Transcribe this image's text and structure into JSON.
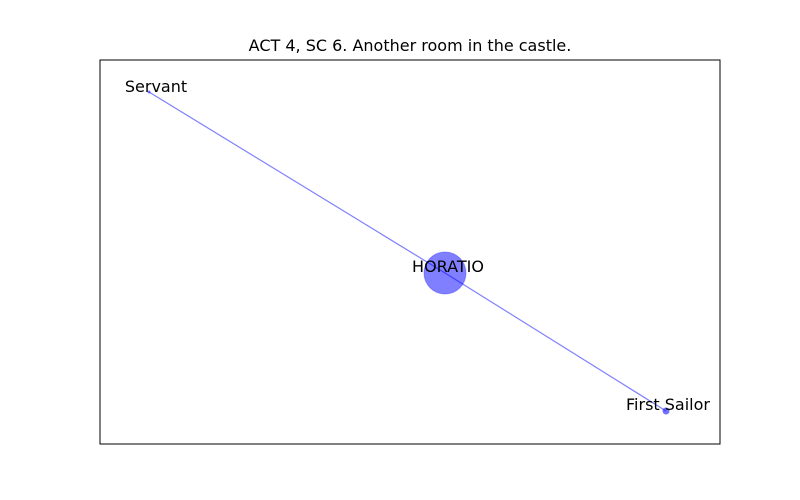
{
  "figure": {
    "title": "ACT 4, SC 6. Another room in the castle."
  },
  "colors": {
    "node": "#0000ff",
    "edge": "#0000ff",
    "frame": "#000000",
    "background": "#ffffff"
  },
  "graph": {
    "nodes": [
      {
        "id": "servant",
        "label": "Servant",
        "size": "small"
      },
      {
        "id": "horatio",
        "label": "HORATIO",
        "size": "large"
      },
      {
        "id": "first-sailor",
        "label": "First Sailor",
        "size": "small"
      }
    ],
    "edges": [
      {
        "from": "servant",
        "to": "horatio"
      },
      {
        "from": "horatio",
        "to": "first-sailor"
      }
    ]
  }
}
